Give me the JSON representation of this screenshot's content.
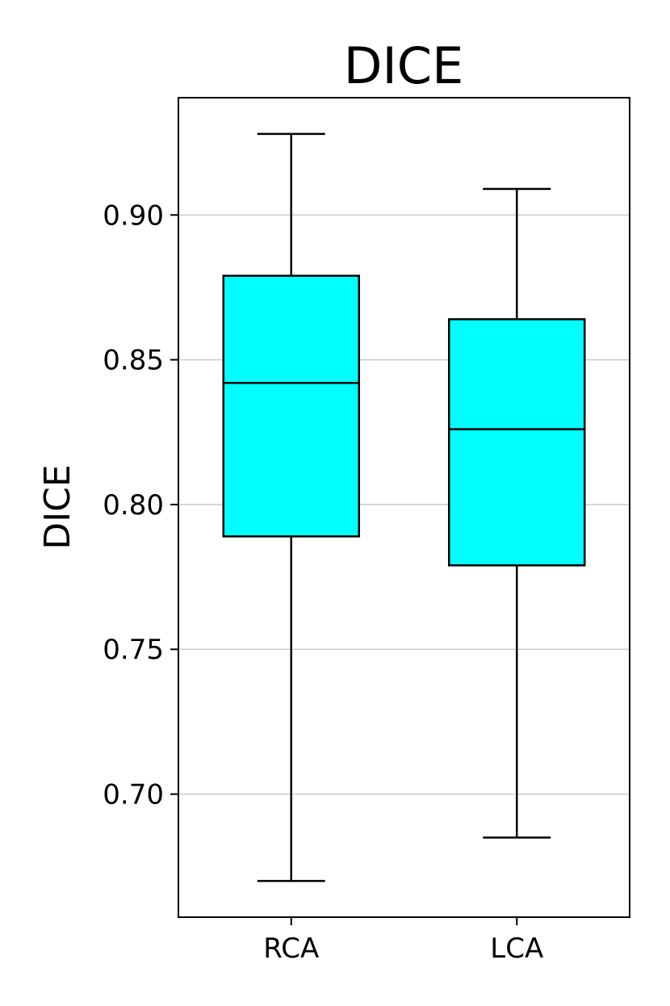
{
  "chart_data": {
    "type": "boxplot",
    "title": "DICE",
    "xlabel": "",
    "ylabel": "DICE",
    "categories": [
      "RCA",
      "LCA"
    ],
    "boxes": [
      {
        "label": "RCA",
        "whisker_low": 0.67,
        "q1": 0.789,
        "median": 0.842,
        "q3": 0.879,
        "whisker_high": 0.928
      },
      {
        "label": "LCA",
        "whisker_low": 0.685,
        "q1": 0.779,
        "median": 0.826,
        "q3": 0.864,
        "whisker_high": 0.909
      }
    ],
    "ylim": [
      0.6575,
      0.9405
    ],
    "yticks": [
      0.7,
      0.75,
      0.8,
      0.85,
      0.9
    ],
    "ytick_labels": [
      "0.70",
      "0.75",
      "0.80",
      "0.85",
      "0.90"
    ],
    "grid": "y",
    "colors": {
      "box_fill": "#00ffff",
      "box_edge": "#000000",
      "grid": "#cccccc"
    }
  }
}
